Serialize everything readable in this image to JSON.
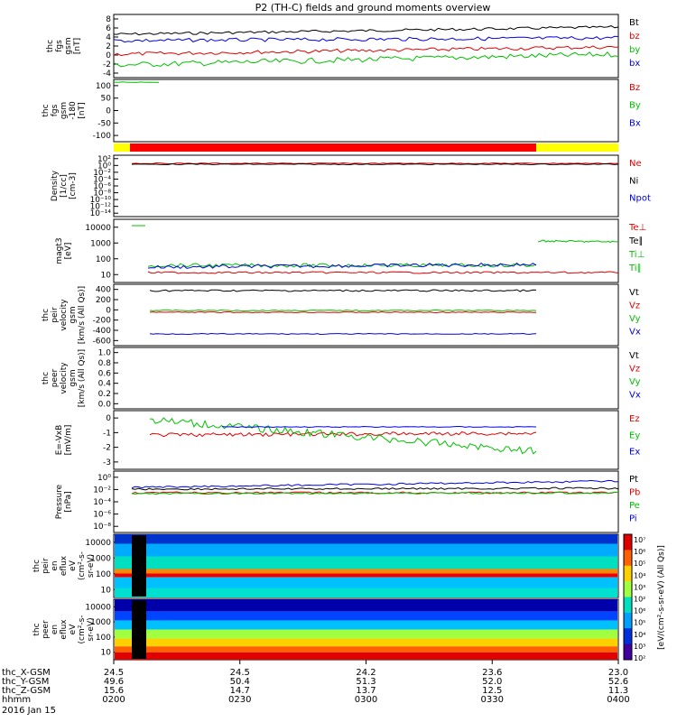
{
  "title": "P2 (TH-C) fields and ground moments overview",
  "colors": {
    "black": "#000000",
    "red": "#e00000",
    "green": "#00c000",
    "blue": "#0000e0",
    "yellow": "#ffff00",
    "barred": "#ff0000"
  },
  "panels": [
    {
      "id": "fgs",
      "ylabel": [
        "thc",
        "fgs",
        "gsm",
        "[nT]"
      ],
      "ticks": [
        "8",
        "6",
        "4",
        "2",
        "0",
        "-2",
        "-4"
      ],
      "legend": [
        {
          "text": "Bt",
          "color": "#000000"
        },
        {
          "text": "bz",
          "color": "#e00000"
        },
        {
          "text": "by",
          "color": "#00c000"
        },
        {
          "text": "bx",
          "color": "#0000e0"
        }
      ]
    },
    {
      "id": "fgs2",
      "ylabel": [
        "thc",
        "fgs",
        "gsm",
        "-180",
        "[nT]"
      ],
      "ticks": [
        "100",
        "50",
        "0",
        "-50",
        "-100"
      ],
      "legend": [
        {
          "text": "Bz",
          "color": "#e00000"
        },
        {
          "text": "By",
          "color": "#00c000"
        },
        {
          "text": "Bx",
          "color": "#0000e0"
        }
      ]
    },
    {
      "id": "density",
      "ylabel": [
        "Density",
        "[1/cc]",
        "[cm-3]"
      ],
      "ticks": [
        "10²",
        "10⁰",
        "10⁻²",
        "10⁻⁴",
        "10⁻⁶",
        "10⁻⁸",
        "10⁻¹⁰",
        "10⁻¹²",
        "10⁻¹⁴"
      ],
      "legend": [
        {
          "text": "Ne",
          "color": "#e00000"
        },
        {
          "text": "Ni",
          "color": "#000000"
        },
        {
          "text": "Npot",
          "color": "#0000e0"
        }
      ]
    },
    {
      "id": "temp",
      "ylabel": [
        "magt3",
        "[eV]"
      ],
      "ticks": [
        "10000",
        "1000",
        "100",
        "10"
      ],
      "legend": [
        {
          "text": "Te⊥",
          "color": "#e00000"
        },
        {
          "text": "Te∥",
          "color": "#000000"
        },
        {
          "text": "Ti⊥",
          "color": "#00c000"
        },
        {
          "text": "Ti∥",
          "color": "#00c000"
        }
      ]
    },
    {
      "id": "peir_vel",
      "ylabel": [
        "thc",
        "peir",
        "velocity",
        "gsm",
        "[km/s (All Qs)]"
      ],
      "ticks": [
        "400",
        "200",
        "0",
        "-200",
        "-400",
        "-600"
      ],
      "legend": [
        {
          "text": "Vt",
          "color": "#000000"
        },
        {
          "text": "Vz",
          "color": "#e00000"
        },
        {
          "text": "Vy",
          "color": "#00c000"
        },
        {
          "text": "Vx",
          "color": "#0000e0"
        }
      ]
    },
    {
      "id": "peer_vel",
      "ylabel": [
        "thc",
        "peer",
        "velocity",
        "gsm",
        "[km/s (All Qs)]"
      ],
      "ticks": [
        "1.0",
        "0.8",
        "0.6",
        "0.4",
        "0.2",
        "0.0"
      ],
      "legend": [
        {
          "text": "Vt",
          "color": "#000000"
        },
        {
          "text": "Vz",
          "color": "#e00000"
        },
        {
          "text": "Vy",
          "color": "#00c000"
        },
        {
          "text": "Vx",
          "color": "#0000e0"
        }
      ]
    },
    {
      "id": "efield",
      "ylabel": [
        "E=-VxB",
        "[mV/m]"
      ],
      "ticks": [
        "0",
        "-1",
        "-2",
        "-3"
      ],
      "legend": [
        {
          "text": "Ez",
          "color": "#e00000"
        },
        {
          "text": "Ey",
          "color": "#00c000"
        },
        {
          "text": "Ex",
          "color": "#0000e0"
        }
      ]
    },
    {
      "id": "pressure",
      "ylabel": [
        "Pressure",
        "[nPa]"
      ],
      "ticks": [
        "10⁰",
        "10⁻²",
        "10⁻⁴",
        "10⁻⁶",
        "10⁻⁸"
      ],
      "legend": [
        {
          "text": "Pt",
          "color": "#000000"
        },
        {
          "text": "Pb",
          "color": "#e00000"
        },
        {
          "text": "Pe",
          "color": "#00c000"
        },
        {
          "text": "Pi",
          "color": "#0000e0"
        }
      ]
    },
    {
      "id": "peir_spec",
      "ylabel": [
        "thc",
        "peir",
        "en",
        "eflux",
        "eV",
        "(cm²-s-",
        "sr-eV)"
      ],
      "ticks": [
        "10000",
        "1000",
        "100",
        "10"
      ],
      "legend": []
    },
    {
      "id": "peer_spec",
      "ylabel": [
        "thc",
        "peer",
        "en",
        "eflux",
        "eV",
        "(cm²-s-",
        "sr-eV)"
      ],
      "ticks": [
        "10000",
        "1000",
        "100",
        "10"
      ],
      "legend": []
    }
  ],
  "colorbar": {
    "ticks": [
      "10⁷",
      "10⁶",
      "10⁵",
      "10⁴",
      "10³",
      "10²",
      "10⁶",
      "10⁵",
      "10⁴",
      "10³",
      "10²"
    ],
    "label": "[eV/(cm²-s-sr-eV) (All Qs)]"
  },
  "xaxis": {
    "rows": [
      {
        "label": "thc_X-GSM",
        "values": [
          "24.5",
          "24.5",
          "24.2",
          "23.6",
          "23.0"
        ]
      },
      {
        "label": "thc_Y-GSM",
        "values": [
          "49.6",
          "50.4",
          "51.3",
          "52.0",
          "52.6"
        ]
      },
      {
        "label": "thc_Z-GSM",
        "values": [
          "15.6",
          "14.7",
          "13.7",
          "12.5",
          "11.3"
        ]
      },
      {
        "label": "hhmm",
        "values": [
          "0200",
          "0230",
          "0300",
          "0330",
          "0400"
        ]
      }
    ],
    "date": "2016 Jan 15"
  },
  "chart_data": {
    "type": "line",
    "title": "P2 (TH-C) fields and ground moments overview",
    "x": [
      "0200",
      "0230",
      "0300",
      "0330",
      "0400"
    ],
    "series": [
      {
        "panel": "fgs",
        "name": "Bt",
        "values": [
          3.5,
          4.2,
          4.5,
          5.0,
          5.2
        ]
      },
      {
        "panel": "fgs",
        "name": "bz",
        "values": [
          0.5,
          1.0,
          1.5,
          1.5,
          1.0
        ]
      },
      {
        "panel": "fgs",
        "name": "by",
        "values": [
          -3.0,
          -2.0,
          -1.5,
          0.5,
          -1.0
        ]
      },
      {
        "panel": "fgs",
        "name": "bx",
        "values": [
          2.5,
          2.8,
          3.0,
          3.2,
          3.0
        ]
      },
      {
        "panel": "peir_vel",
        "name": "Vt",
        "values": [
          420,
          430,
          430,
          425,
          420
        ]
      },
      {
        "panel": "peir_vel",
        "name": "Vz",
        "values": [
          0,
          0,
          0,
          0,
          0
        ]
      },
      {
        "panel": "peir_vel",
        "name": "Vy",
        "values": [
          60,
          60,
          60,
          60,
          60
        ]
      },
      {
        "panel": "peir_vel",
        "name": "Vx",
        "values": [
          -420,
          -420,
          -425,
          -420,
          -420
        ]
      },
      {
        "panel": "efield",
        "name": "Ez",
        "values": [
          -0.8,
          -0.6,
          -0.3,
          -0.2,
          0.3
        ]
      },
      {
        "panel": "efield",
        "name": "Ey",
        "values": [
          0.2,
          -1.2,
          -1.6,
          -1.9,
          -1.7
        ]
      },
      {
        "panel": "efield",
        "name": "Ex",
        "values": [
          -0.3,
          -0.3,
          -0.3,
          -0.3,
          -0.3
        ]
      }
    ]
  }
}
